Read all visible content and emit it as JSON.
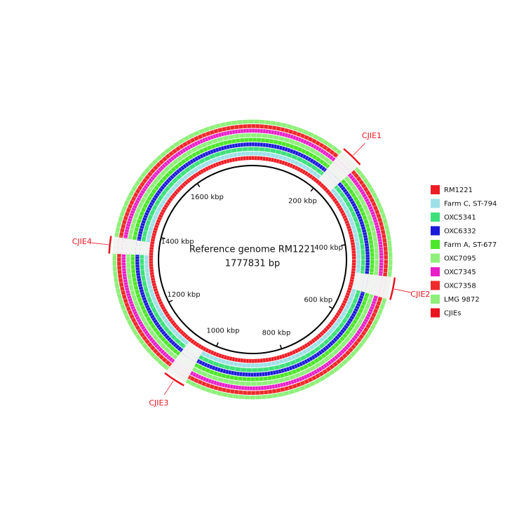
{
  "chart_data": {
    "type": "circular",
    "center_text": [
      "Reference genome RM1221",
      "1777831 bp"
    ],
    "xlim": [
      0,
      1777831
    ],
    "xticks": [
      {
        "value": 200000,
        "label": "200 kbp"
      },
      {
        "value": 400000,
        "label": "400 kbp"
      },
      {
        "value": 600000,
        "label": "600 kbp"
      },
      {
        "value": 800000,
        "label": "800 kbp"
      },
      {
        "value": 1000000,
        "label": "1000 kbp"
      },
      {
        "value": 1200000,
        "label": "1200 kbp"
      },
      {
        "value": 1400000,
        "label": "1400 kbp"
      },
      {
        "value": 1600000,
        "label": "1600 kbp"
      }
    ],
    "series": [
      {
        "name": "RM1221",
        "color": "#ee1c24"
      },
      {
        "name": "Farm C, ST-794",
        "color": "#9ee0e8"
      },
      {
        "name": "OXC5341",
        "color": "#3ee07a"
      },
      {
        "name": "OXC6332",
        "color": "#1a1ad8"
      },
      {
        "name": "Farm A, ST-677",
        "color": "#4ee62a"
      },
      {
        "name": "OXC7095",
        "color": "#8ef07a"
      },
      {
        "name": "OXC7345",
        "color": "#e81ec8"
      },
      {
        "name": "OXC7358",
        "color": "#ee2a2a"
      },
      {
        "name": "LMG 9872",
        "color": "#8ef07a"
      },
      {
        "name": "CJIEs",
        "color": "#e8141e"
      }
    ],
    "regions": [
      {
        "name": "CJIE1",
        "start": 195000,
        "end": 240000
      },
      {
        "name": "CJIE2",
        "start": 480000,
        "end": 525000
      },
      {
        "name": "CJIE3",
        "start": 1030000,
        "end": 1075000
      },
      {
        "name": "CJIE4",
        "start": 1345000,
        "end": 1380000
      }
    ]
  }
}
